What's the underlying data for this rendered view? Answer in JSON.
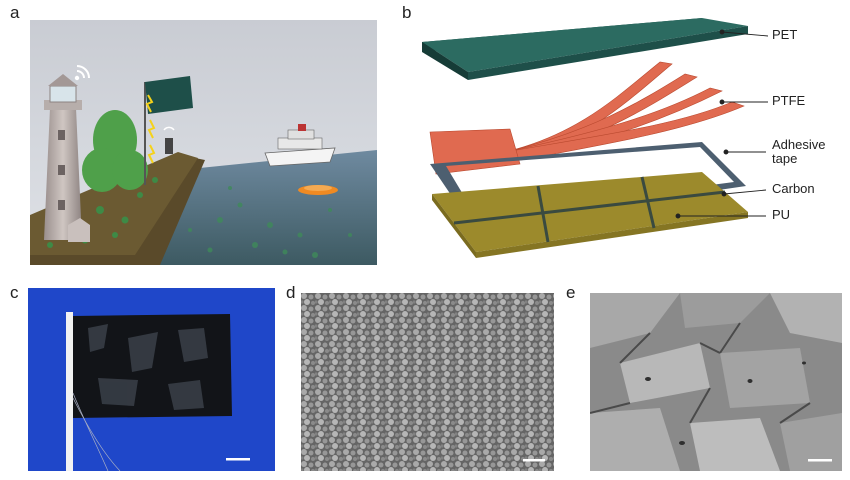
{
  "figure": {
    "panels": [
      {
        "id": "a",
        "label": "a"
      },
      {
        "id": "b",
        "label": "b",
        "layers": [
          {
            "key": "pet",
            "label": "PET"
          },
          {
            "key": "ptfe",
            "label": "PTFE"
          },
          {
            "key": "adhesive",
            "label": "Adhesive\ntape"
          },
          {
            "key": "carbon",
            "label": "Carbon"
          },
          {
            "key": "pu",
            "label": "PU"
          }
        ]
      },
      {
        "id": "c",
        "label": "c"
      },
      {
        "id": "d",
        "label": "d"
      },
      {
        "id": "e",
        "label": "e"
      }
    ]
  },
  "colors": {
    "pet": "#1e4f49",
    "ptfe": "#e06a50",
    "adhesive": "#4d5f70",
    "carbon": "#9c8a2c",
    "pu_grid": "#3a4a40",
    "blue_bg": "#1f47c9"
  }
}
